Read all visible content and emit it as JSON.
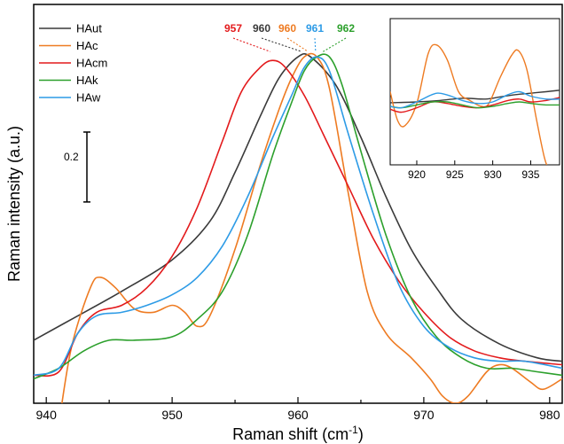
{
  "chart_data": [
    {
      "type": "line",
      "xlabel": "Raman shift (cm",
      "xlabel_sup": "-1",
      "xlabel_suffix": ")",
      "ylabel": "Raman intensity (a.u.)",
      "xlim": [
        939,
        981
      ],
      "ylim": [
        0,
        1.14
      ],
      "x_ticks": [
        940,
        950,
        960,
        970,
        980
      ],
      "scale_bar": {
        "label": "0.2",
        "value": 0.2
      },
      "legend_position": "top-left",
      "grid": false,
      "series": [
        {
          "name": "HAut",
          "color": "#3a3a3a",
          "points": [
            [
              939,
              0.18
            ],
            [
              942,
              0.24
            ],
            [
              946,
              0.32
            ],
            [
              950,
              0.41
            ],
            [
              953,
              0.52
            ],
            [
              955,
              0.66
            ],
            [
              957,
              0.82
            ],
            [
              958.5,
              0.93
            ],
            [
              960,
              0.99
            ],
            [
              961,
              0.99
            ],
            [
              963,
              0.91
            ],
            [
              965,
              0.76
            ],
            [
              967,
              0.59
            ],
            [
              969,
              0.44
            ],
            [
              971,
              0.33
            ],
            [
              973,
              0.24
            ],
            [
              976,
              0.17
            ],
            [
              979,
              0.13
            ],
            [
              981,
              0.12
            ]
          ]
        },
        {
          "name": "HAc",
          "color": "#ee7b22",
          "points": [
            [
              941,
              -0.06
            ],
            [
              942,
              0.16
            ],
            [
              943.5,
              0.33
            ],
            [
              944.3,
              0.36
            ],
            [
              945.5,
              0.33
            ],
            [
              947,
              0.27
            ],
            [
              948.5,
              0.26
            ],
            [
              950,
              0.28
            ],
            [
              951,
              0.26
            ],
            [
              952,
              0.22
            ],
            [
              953,
              0.25
            ],
            [
              955,
              0.44
            ],
            [
              957,
              0.68
            ],
            [
              958.5,
              0.84
            ],
            [
              959.5,
              0.93
            ],
            [
              960.5,
              0.99
            ],
            [
              961.5,
              0.99
            ],
            [
              962.5,
              0.9
            ],
            [
              964,
              0.6
            ],
            [
              965.5,
              0.32
            ],
            [
              967,
              0.2
            ],
            [
              969,
              0.13
            ],
            [
              970.5,
              0.07
            ],
            [
              971.5,
              0.02
            ],
            [
              972.5,
              0.0
            ],
            [
              973.5,
              0.02
            ],
            [
              975,
              0.09
            ],
            [
              976,
              0.11
            ],
            [
              977,
              0.1
            ],
            [
              978.5,
              0.06
            ],
            [
              979.5,
              0.04
            ],
            [
              981,
              0.07
            ]
          ]
        },
        {
          "name": "HAcm",
          "color": "#e31a1c",
          "points": [
            [
              939,
              0.08
            ],
            [
              941,
              0.09
            ],
            [
              942.5,
              0.2
            ],
            [
              944,
              0.26
            ],
            [
              946,
              0.28
            ],
            [
              948,
              0.33
            ],
            [
              950,
              0.42
            ],
            [
              952,
              0.56
            ],
            [
              954,
              0.75
            ],
            [
              955.5,
              0.89
            ],
            [
              957,
              0.96
            ],
            [
              958,
              0.98
            ],
            [
              959,
              0.96
            ],
            [
              960.5,
              0.88
            ],
            [
              962,
              0.77
            ],
            [
              964,
              0.62
            ],
            [
              966,
              0.47
            ],
            [
              968,
              0.35
            ],
            [
              970,
              0.26
            ],
            [
              972,
              0.19
            ],
            [
              974,
              0.15
            ],
            [
              976,
              0.13
            ],
            [
              978,
              0.12
            ],
            [
              981,
              0.11
            ]
          ]
        },
        {
          "name": "HAk",
          "color": "#2ca02c",
          "points": [
            [
              939,
              0.07
            ],
            [
              941,
              0.1
            ],
            [
              943,
              0.15
            ],
            [
              945,
              0.18
            ],
            [
              947,
              0.18
            ],
            [
              950,
              0.19
            ],
            [
              952,
              0.24
            ],
            [
              954,
              0.32
            ],
            [
              956,
              0.48
            ],
            [
              958,
              0.71
            ],
            [
              959.5,
              0.86
            ],
            [
              960.5,
              0.95
            ],
            [
              961.5,
              0.99
            ],
            [
              962.5,
              0.99
            ],
            [
              963.5,
              0.91
            ],
            [
              965,
              0.72
            ],
            [
              967,
              0.48
            ],
            [
              969,
              0.3
            ],
            [
              971,
              0.19
            ],
            [
              973,
              0.13
            ],
            [
              975,
              0.1
            ],
            [
              977,
              0.1
            ],
            [
              979,
              0.09
            ],
            [
              981,
              0.08
            ]
          ]
        },
        {
          "name": "HAw",
          "color": "#2d9be6",
          "points": [
            [
              939,
              0.08
            ],
            [
              941,
              0.1
            ],
            [
              942.5,
              0.2
            ],
            [
              944,
              0.25
            ],
            [
              946,
              0.26
            ],
            [
              948,
              0.28
            ],
            [
              950,
              0.31
            ],
            [
              952,
              0.36
            ],
            [
              954,
              0.45
            ],
            [
              956,
              0.59
            ],
            [
              958,
              0.76
            ],
            [
              959.5,
              0.88
            ],
            [
              960.5,
              0.96
            ],
            [
              961.5,
              0.99
            ],
            [
              962.5,
              0.95
            ],
            [
              964,
              0.77
            ],
            [
              966,
              0.54
            ],
            [
              968,
              0.34
            ],
            [
              970,
              0.22
            ],
            [
              972,
              0.16
            ],
            [
              974,
              0.13
            ],
            [
              976,
              0.12
            ],
            [
              978,
              0.12
            ],
            [
              981,
              0.1
            ]
          ]
        }
      ],
      "peak_labels": [
        {
          "label": "957",
          "series": "HAcm",
          "x": 957.8
        },
        {
          "label": "960",
          "series": "HAut",
          "x": 960.3
        },
        {
          "label": "960",
          "series": "HAc",
          "x": 960.8
        },
        {
          "label": "961",
          "series": "HAw",
          "x": 961.4
        },
        {
          "label": "962",
          "series": "HAk",
          "x": 962.0
        }
      ]
    },
    {
      "type": "line",
      "title": "",
      "xlim": [
        916.5,
        938.8
      ],
      "ylim": [
        0,
        1
      ],
      "x_ticks": [
        920,
        925,
        930,
        935
      ],
      "series": [
        {
          "name": "HAut",
          "color": "#3a3a3a",
          "points": [
            [
              916.5,
              0.425
            ],
            [
              920,
              0.43
            ],
            [
              923,
              0.44
            ],
            [
              926,
              0.455
            ],
            [
              929,
              0.45
            ],
            [
              931,
              0.465
            ],
            [
              933,
              0.48
            ],
            [
              935,
              0.49
            ],
            [
              937,
              0.5
            ],
            [
              938.8,
              0.51
            ]
          ]
        },
        {
          "name": "HAc",
          "color": "#ee7b22",
          "points": [
            [
              916.5,
              0.5
            ],
            [
              917.5,
              0.3
            ],
            [
              918.5,
              0.27
            ],
            [
              920,
              0.42
            ],
            [
              921.5,
              0.76
            ],
            [
              922.6,
              0.82
            ],
            [
              924,
              0.72
            ],
            [
              925.5,
              0.5
            ],
            [
              927,
              0.44
            ],
            [
              928.5,
              0.4
            ],
            [
              929.5,
              0.42
            ],
            [
              931,
              0.6
            ],
            [
              932.5,
              0.75
            ],
            [
              933.4,
              0.78
            ],
            [
              934.5,
              0.65
            ],
            [
              935.8,
              0.3
            ],
            [
              936.8,
              0.05
            ],
            [
              937.5,
              -0.05
            ]
          ]
        },
        {
          "name": "HAcm",
          "color": "#e31a1c",
          "points": [
            [
              916.5,
              0.38
            ],
            [
              918,
              0.36
            ],
            [
              920,
              0.39
            ],
            [
              922,
              0.43
            ],
            [
              924,
              0.42
            ],
            [
              926,
              0.4
            ],
            [
              928,
              0.39
            ],
            [
              930,
              0.41
            ],
            [
              932,
              0.44
            ],
            [
              933.5,
              0.45
            ],
            [
              935,
              0.43
            ],
            [
              937,
              0.44
            ],
            [
              938.8,
              0.46
            ]
          ]
        },
        {
          "name": "HAk",
          "color": "#2ca02c",
          "points": [
            [
              916.5,
              0.4
            ],
            [
              918,
              0.39
            ],
            [
              920,
              0.41
            ],
            [
              922,
              0.43
            ],
            [
              924,
              0.43
            ],
            [
              926,
              0.41
            ],
            [
              928,
              0.39
            ],
            [
              930,
              0.4
            ],
            [
              932,
              0.42
            ],
            [
              933.5,
              0.43
            ],
            [
              935,
              0.42
            ],
            [
              937,
              0.41
            ],
            [
              938.8,
              0.41
            ]
          ]
        },
        {
          "name": "HAw",
          "color": "#2d9be6",
          "points": [
            [
              916.5,
              0.4
            ],
            [
              918,
              0.39
            ],
            [
              920,
              0.43
            ],
            [
              922,
              0.48
            ],
            [
              923,
              0.49
            ],
            [
              924.5,
              0.47
            ],
            [
              926,
              0.44
            ],
            [
              928,
              0.42
            ],
            [
              930,
              0.43
            ],
            [
              932,
              0.48
            ],
            [
              933.5,
              0.5
            ],
            [
              935,
              0.47
            ],
            [
              937,
              0.45
            ],
            [
              938.8,
              0.45
            ]
          ]
        }
      ]
    }
  ]
}
